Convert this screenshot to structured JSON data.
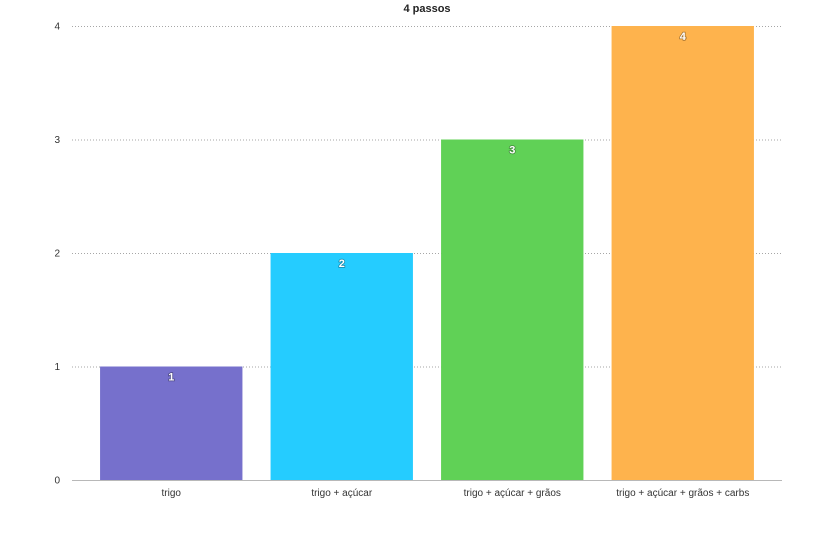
{
  "chart_data": {
    "type": "bar",
    "title": "4 passos",
    "xlabel": "",
    "ylabel": "",
    "categories": [
      "trigo",
      "trigo + açúcar",
      "trigo + açúcar + grãos",
      "trigo + açúcar + grãos + carbs"
    ],
    "values": [
      1,
      2,
      3,
      4
    ],
    "data_labels": [
      "1",
      "2",
      "3",
      "4"
    ],
    "bar_colors": [
      "#7670cc",
      "#25ccff",
      "#60d156",
      "#feb34d"
    ],
    "ylim": [
      0,
      4
    ],
    "yticks": [
      0,
      1,
      2,
      3,
      4
    ],
    "grid": true,
    "legend": "none"
  }
}
